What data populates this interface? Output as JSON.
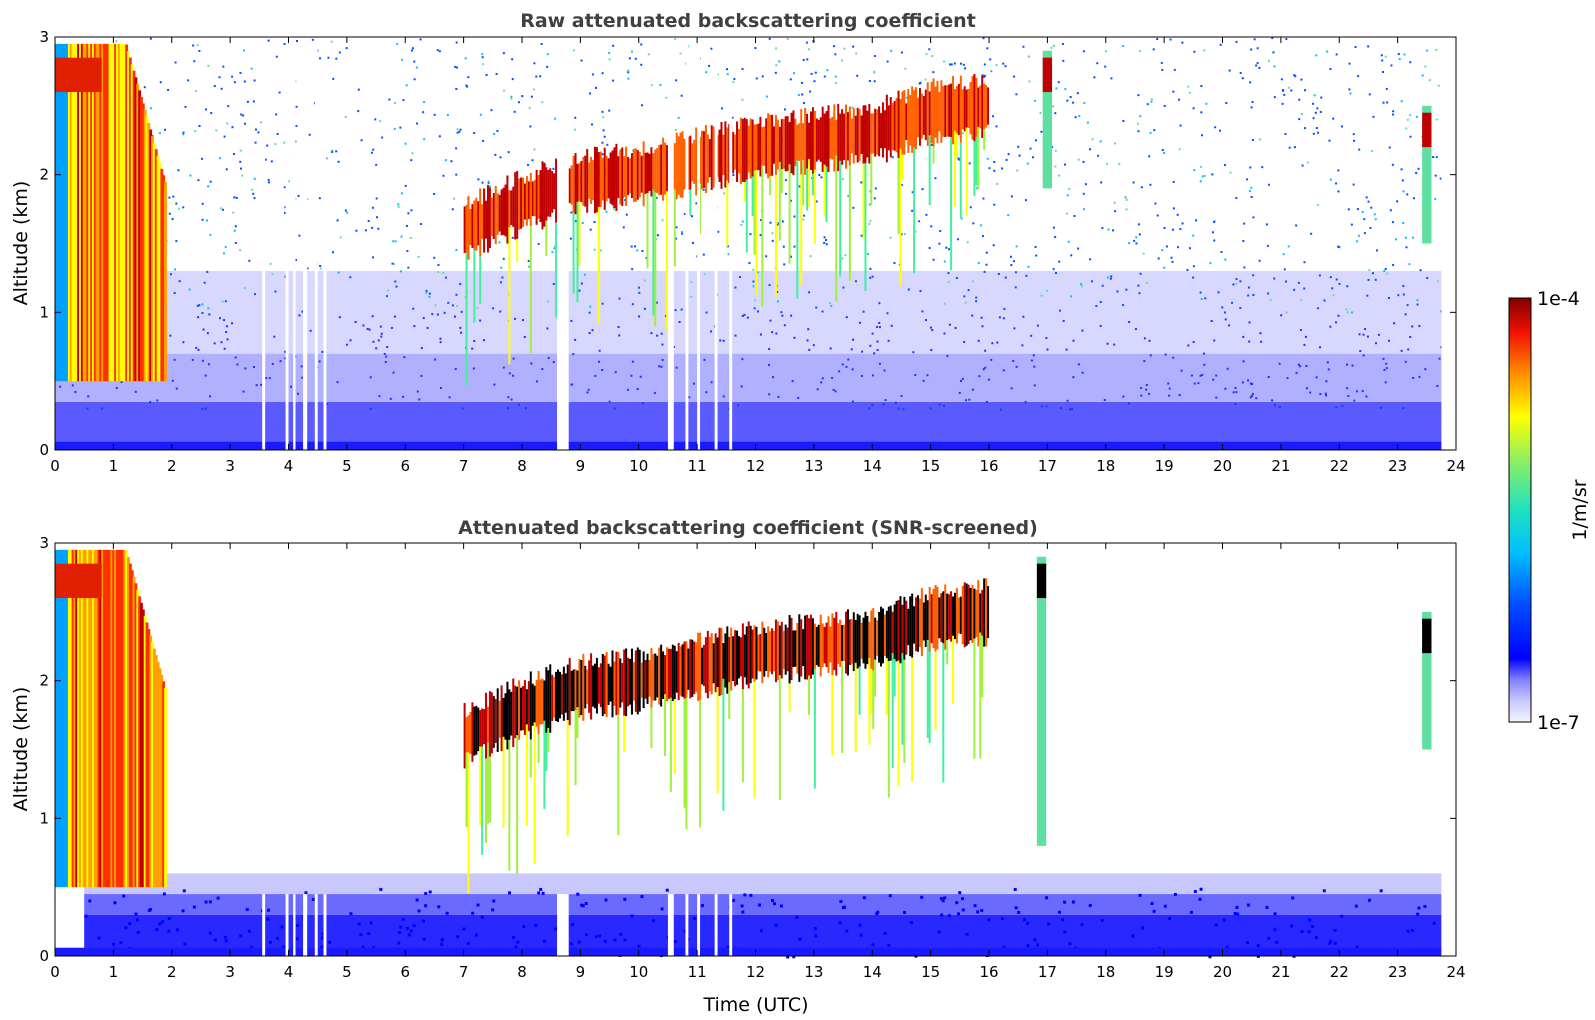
{
  "chart_data": [
    {
      "type": "heatmap",
      "title": "Raw attenuated backscattering coefficient",
      "xlabel": "",
      "ylabel": "Altitude (km)",
      "xlim": [
        0,
        24
      ],
      "ylim": [
        0,
        3
      ],
      "x_ticks": [
        "0",
        "1",
        "2",
        "3",
        "4",
        "5",
        "6",
        "7",
        "8",
        "9",
        "10",
        "11",
        "12",
        "13",
        "14",
        "15",
        "16",
        "17",
        "18",
        "19",
        "20",
        "21",
        "22",
        "23",
        "24"
      ],
      "y_ticks": [
        "0",
        "1",
        "2",
        "3"
      ],
      "data_gaps_utc": [
        [
          3.55,
          3.6
        ],
        [
          3.95,
          4.0
        ],
        [
          4.08,
          4.12
        ],
        [
          4.25,
          4.32
        ],
        [
          4.45,
          4.5
        ],
        [
          4.6,
          4.65
        ],
        [
          8.6,
          8.8
        ],
        [
          10.5,
          10.6
        ],
        [
          10.8,
          10.85
        ],
        [
          11.0,
          11.05
        ],
        [
          11.3,
          11.35
        ],
        [
          11.55,
          11.6
        ],
        [
          23.75,
          24
        ]
      ],
      "features": [
        {
          "kind": "boundary_layer",
          "t_start": 0,
          "t_end": 1.9,
          "alt_top_km": 2.8
        },
        {
          "kind": "cloud_layer",
          "points": [
            [
              7.0,
              1.6
            ],
            [
              8.0,
              1.8
            ],
            [
              9.0,
              1.95
            ],
            [
              10.0,
              2.0
            ],
            [
              11.0,
              2.1
            ],
            [
              12.0,
              2.2
            ],
            [
              13.0,
              2.25
            ],
            [
              14.0,
              2.3
            ],
            [
              15.0,
              2.45
            ],
            [
              16.0,
              2.5
            ]
          ]
        },
        {
          "kind": "cloud",
          "t": 17.0,
          "alt_km": 2.7
        },
        {
          "kind": "cloud",
          "t": 23.5,
          "alt_km": 2.3
        }
      ]
    },
    {
      "type": "heatmap",
      "title": "Attenuated backscattering coefficient (SNR-screened)",
      "xlabel": "Time (UTC)",
      "ylabel": "Altitude (km)",
      "xlim": [
        0,
        24
      ],
      "ylim": [
        0,
        3
      ],
      "x_ticks": [
        "0",
        "1",
        "2",
        "3",
        "4",
        "5",
        "6",
        "7",
        "8",
        "9",
        "10",
        "11",
        "12",
        "13",
        "14",
        "15",
        "16",
        "17",
        "18",
        "19",
        "20",
        "21",
        "22",
        "23",
        "24"
      ],
      "y_ticks": [
        "0",
        "1",
        "2",
        "3"
      ],
      "features": [
        {
          "kind": "boundary_layer",
          "t_start": 0,
          "t_end": 1.9,
          "alt_top_km": 2.8
        },
        {
          "kind": "aerosol_layer",
          "t_start": 0.5,
          "t_end": 23.75,
          "alt_top_km": 0.6
        },
        {
          "kind": "cloud_layer",
          "points": [
            [
              7.0,
              1.6
            ],
            [
              8.0,
              1.8
            ],
            [
              9.0,
              1.95
            ],
            [
              10.0,
              2.0
            ],
            [
              11.0,
              2.1
            ],
            [
              12.0,
              2.2
            ],
            [
              13.0,
              2.25
            ],
            [
              14.0,
              2.3
            ],
            [
              15.0,
              2.45
            ],
            [
              16.0,
              2.5
            ]
          ]
        },
        {
          "kind": "cloud",
          "t": 16.9,
          "alt_km": 2.7,
          "base_km": 0.8
        },
        {
          "kind": "cloud",
          "t": 23.5,
          "alt_km": 2.3
        }
      ]
    }
  ],
  "colorbar": {
    "label": "1/m/sr",
    "max_label": "1e-4",
    "min_label": "1e-7",
    "scale": "log",
    "colormap": "jet"
  }
}
